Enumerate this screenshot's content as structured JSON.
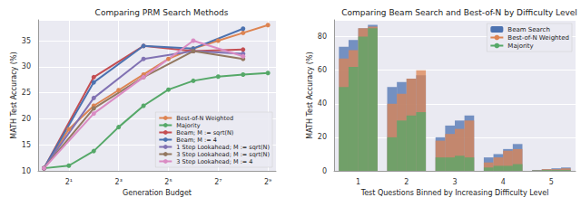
{
  "chart_data": [
    {
      "type": "line",
      "title": "Comparing PRM Search Methods",
      "x_label": "Generation Budget",
      "y_label": "MATH Test Accuracy (%)",
      "log": "x",
      "grid": true,
      "legend": "lower right",
      "xlim": [
        0.85,
        640
      ],
      "xticks": [
        {
          "value": 2,
          "label": "2¹"
        },
        {
          "value": 8,
          "label": "2³"
        },
        {
          "value": 32,
          "label": "2⁵"
        },
        {
          "value": 128,
          "label": "2⁷"
        },
        {
          "value": 512,
          "label": "2⁹"
        }
      ],
      "ylim": [
        10,
        39
      ],
      "yticks": [
        10,
        15,
        20,
        25,
        30,
        35
      ],
      "series": [
        {
          "name": "Best-of-N Weighted",
          "color": "#dd8452",
          "marker": "circle",
          "x": [
            1,
            2,
            4,
            8,
            16,
            32,
            64,
            128,
            256,
            512
          ],
          "values": [
            10.5,
            18,
            22.5,
            25.5,
            28.5,
            31.5,
            33.5,
            35,
            36.5,
            38
          ]
        },
        {
          "name": "Majority",
          "color": "#55a868",
          "marker": "circle",
          "x": [
            1,
            2,
            4,
            8,
            16,
            32,
            64,
            128,
            256,
            512
          ],
          "values": [
            10.5,
            11,
            13.8,
            18.4,
            22.5,
            25.6,
            27.3,
            28.1,
            28.5,
            28.8
          ]
        },
        {
          "name": "Beam; M := sqrt(N)",
          "color": "#c44e52",
          "marker": "circle",
          "x": [
            1,
            4,
            16,
            64,
            256
          ],
          "values": [
            10.5,
            28,
            34,
            33,
            33.3
          ]
        },
        {
          "name": "Beam; M := 4",
          "color": "#4c72b0",
          "marker": "circle",
          "x": [
            1,
            4,
            16,
            64,
            256
          ],
          "values": [
            10.5,
            27,
            34,
            33.5,
            37.3
          ]
        },
        {
          "name": "1 Step Lookahead; M := sqrt(N)",
          "color": "#8172b3",
          "marker": "circle",
          "x": [
            1,
            4,
            16,
            64,
            256
          ],
          "values": [
            10.5,
            24,
            31.5,
            33,
            32.5
          ]
        },
        {
          "name": "3 Step Lookahead; M := sqrt(N)",
          "color": "#937860",
          "marker": "circle",
          "x": [
            1,
            4,
            16,
            64,
            256
          ],
          "values": [
            10.5,
            22,
            28,
            33,
            31.5
          ]
        },
        {
          "name": "3 Step Lookahead; M := 4",
          "color": "#da8bc3",
          "marker": "circle",
          "x": [
            1,
            4,
            16,
            64,
            256
          ],
          "values": [
            10.5,
            21,
            28,
            35,
            32
          ]
        }
      ]
    },
    {
      "type": "bar",
      "title": "Comparing Beam Search and Best-of-N by Difficulty Level",
      "x_label": "Test Questions Binned by Increasing Difficulty Level",
      "y_label": "MATH Test Accuracy (%)",
      "grid": true,
      "legend": "upper right",
      "categories": [
        "1",
        "2",
        "3",
        "4",
        "5"
      ],
      "ylim": [
        0,
        90
      ],
      "yticks": [
        0,
        20,
        40,
        60,
        80
      ],
      "series": [
        {
          "name": "Beam Search",
          "color": "#4c72b0",
          "values": [
            [
              74,
              78,
              85,
              87
            ],
            [
              50,
              53,
              55,
              57
            ],
            [
              20,
              27,
              30,
              33
            ],
            [
              8,
              10,
              13,
              16
            ],
            [
              0.5,
              1,
              1.5,
              2
            ]
          ]
        },
        {
          "name": "Best-of-N Weighted",
          "color": "#dd8452",
          "values": [
            [
              67,
              72,
              85,
              86
            ],
            [
              40,
              46,
              55,
              60
            ],
            [
              18,
              22,
              25,
              30
            ],
            [
              5,
              8,
              12,
              13
            ],
            [
              0.3,
              1,
              1,
              1.5
            ]
          ]
        },
        {
          "name": "Majority",
          "color": "#55a868",
          "values": [
            [
              50,
              62,
              80,
              85
            ],
            [
              20,
              30,
              33,
              35
            ],
            [
              8,
              8,
              9,
              8
            ],
            [
              2,
              3,
              3,
              4
            ],
            [
              0.2,
              0.5,
              0.5,
              0.5
            ]
          ]
        }
      ]
    }
  ]
}
